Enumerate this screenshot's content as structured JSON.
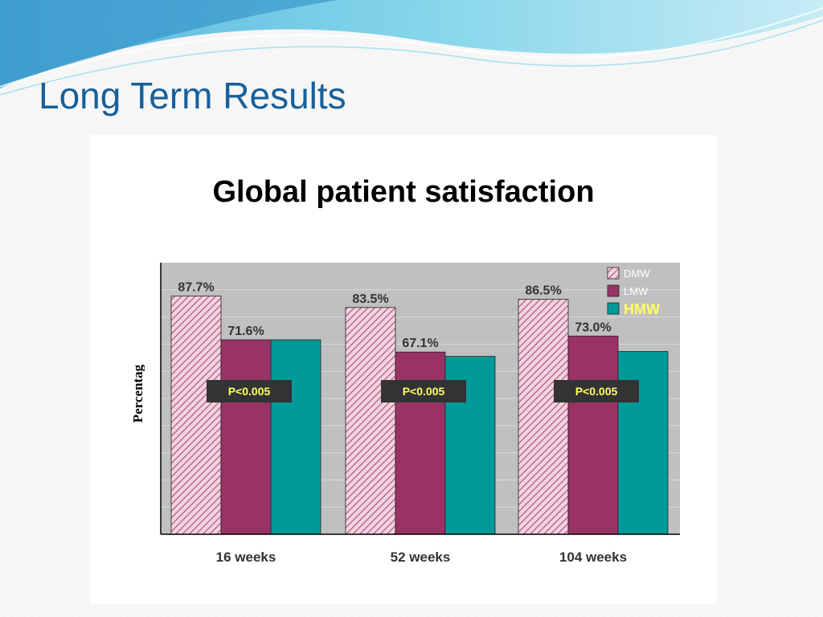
{
  "slide": {
    "title": "Long Term Results"
  },
  "chart_data": {
    "type": "bar",
    "title": "Global patient satisfaction",
    "ylabel": "Percentag",
    "xlabel": "",
    "categories": [
      "16 weeks",
      "52 weeks",
      "104 weeks"
    ],
    "ylim": [
      0,
      100
    ],
    "grid": true,
    "legend_position": "top-right",
    "series": [
      {
        "name": "DMW",
        "values": [
          87.7,
          83.5,
          86.5
        ],
        "labels": [
          "87.7%",
          "83.5%",
          "86.5%"
        ],
        "color": "#e8b4c8",
        "pattern": "hatched"
      },
      {
        "name": "LMW",
        "values": [
          71.6,
          67.1,
          73.0
        ],
        "labels": [
          "71.6%",
          "67.1%",
          "73.0%"
        ],
        "color": "#993366"
      },
      {
        "name": "HMW",
        "values": [
          71.6,
          65.5,
          67.3
        ],
        "labels": [
          "",
          "",
          ""
        ],
        "color": "#009999"
      }
    ],
    "annotations": [
      "P<0.005",
      "P<0.005",
      "P<0.005"
    ],
    "colors": {
      "plot_background": "#c0c0c0",
      "annotation_box": "#333333",
      "annotation_text": "#ffff66",
      "legend_text": "#ffffff",
      "legend_highlight_text": "#ffff66"
    }
  }
}
